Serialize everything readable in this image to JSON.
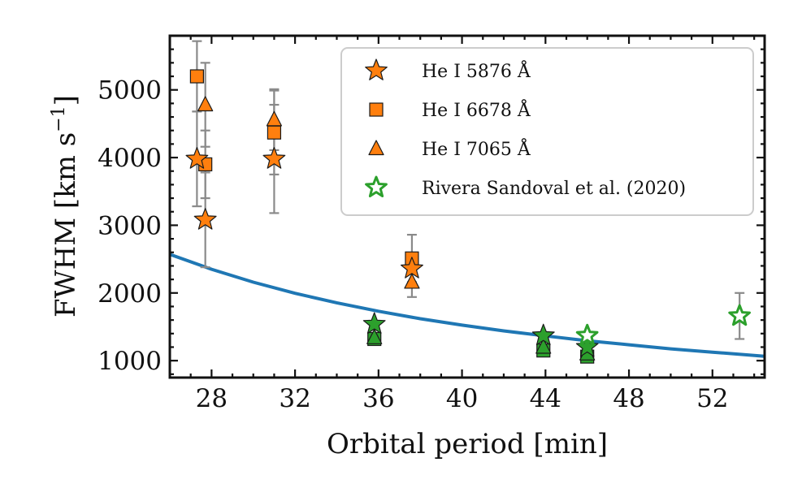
{
  "chart_data": {
    "type": "scatter",
    "xlabel": "Orbital period [min]",
    "ylabel": "FWHM [km s",
    "ylabel_sup": "−1",
    "ylabel_end": "]",
    "xlim": [
      26,
      54.5
    ],
    "ylim": [
      750,
      5800
    ],
    "x_ticks": [
      28,
      32,
      36,
      40,
      44,
      48,
      52
    ],
    "y_ticks": [
      1000,
      2000,
      3000,
      4000,
      5000
    ],
    "grid": false,
    "legend_position": "top-right",
    "colors": {
      "orange": "#ff7f0e",
      "green": "#2ca02c",
      "curve": "#1f77b4",
      "error": "#8a8a8a"
    },
    "series": [
      {
        "name": "He I 5876 Å",
        "marker": "star",
        "points": [
          {
            "x": 27.3,
            "y": 3980,
            "err": 700,
            "color": "orange"
          },
          {
            "x": 27.7,
            "y": 3080,
            "err": 700,
            "color": "orange"
          },
          {
            "x": 31.0,
            "y": 3980,
            "err": 800,
            "color": "orange"
          },
          {
            "x": 37.6,
            "y": 2360,
            "err": 0,
            "color": "orange"
          },
          {
            "x": 35.8,
            "y": 1540,
            "err": 0,
            "color": "green"
          },
          {
            "x": 43.9,
            "y": 1370,
            "err": 0,
            "color": "green"
          },
          {
            "x": 46.0,
            "y": 1200,
            "err": 0,
            "color": "green"
          }
        ]
      },
      {
        "name": "He I 6678 Å",
        "marker": "square",
        "points": [
          {
            "x": 27.3,
            "y": 5200,
            "err": 520,
            "color": "orange"
          },
          {
            "x": 27.7,
            "y": 3900,
            "err": 500,
            "color": "orange"
          },
          {
            "x": 31.0,
            "y": 4370,
            "err": 620,
            "color": "orange"
          },
          {
            "x": 37.6,
            "y": 2510,
            "err": 350,
            "color": "orange"
          },
          {
            "x": 35.8,
            "y": 1320,
            "err": 0,
            "color": "green"
          },
          {
            "x": 43.9,
            "y": 1150,
            "err": 0,
            "color": "green"
          },
          {
            "x": 46.0,
            "y": 1060,
            "err": 0,
            "color": "green"
          }
        ]
      },
      {
        "name": "He I 7065 Å",
        "marker": "triangle",
        "points": [
          {
            "x": 27.7,
            "y": 4780,
            "err": 620,
            "color": "orange"
          },
          {
            "x": 31.0,
            "y": 4560,
            "err": 450,
            "color": "orange"
          },
          {
            "x": 37.6,
            "y": 2160,
            "err": 220,
            "color": "orange"
          },
          {
            "x": 35.8,
            "y": 1340,
            "err": 0,
            "color": "green"
          },
          {
            "x": 43.9,
            "y": 1200,
            "err": 0,
            "color": "green"
          },
          {
            "x": 46.0,
            "y": 1100,
            "err": 0,
            "color": "green"
          }
        ]
      },
      {
        "name": "Rivera Sandoval et al. (2020)",
        "marker": "open-star",
        "points": [
          {
            "x": 46.0,
            "y": 1370,
            "err": 0,
            "color": "green"
          },
          {
            "x": 53.3,
            "y": 1660,
            "err": 340,
            "color": "green"
          }
        ]
      }
    ],
    "curve": {
      "style": "solid line",
      "x": [
        26,
        28,
        30,
        32,
        34,
        36,
        38,
        40,
        42,
        44,
        46,
        48,
        50,
        52,
        54.5
      ],
      "y": [
        2570,
        2350,
        2160,
        1995,
        1855,
        1730,
        1620,
        1525,
        1440,
        1365,
        1295,
        1235,
        1175,
        1125,
        1065
      ]
    }
  }
}
